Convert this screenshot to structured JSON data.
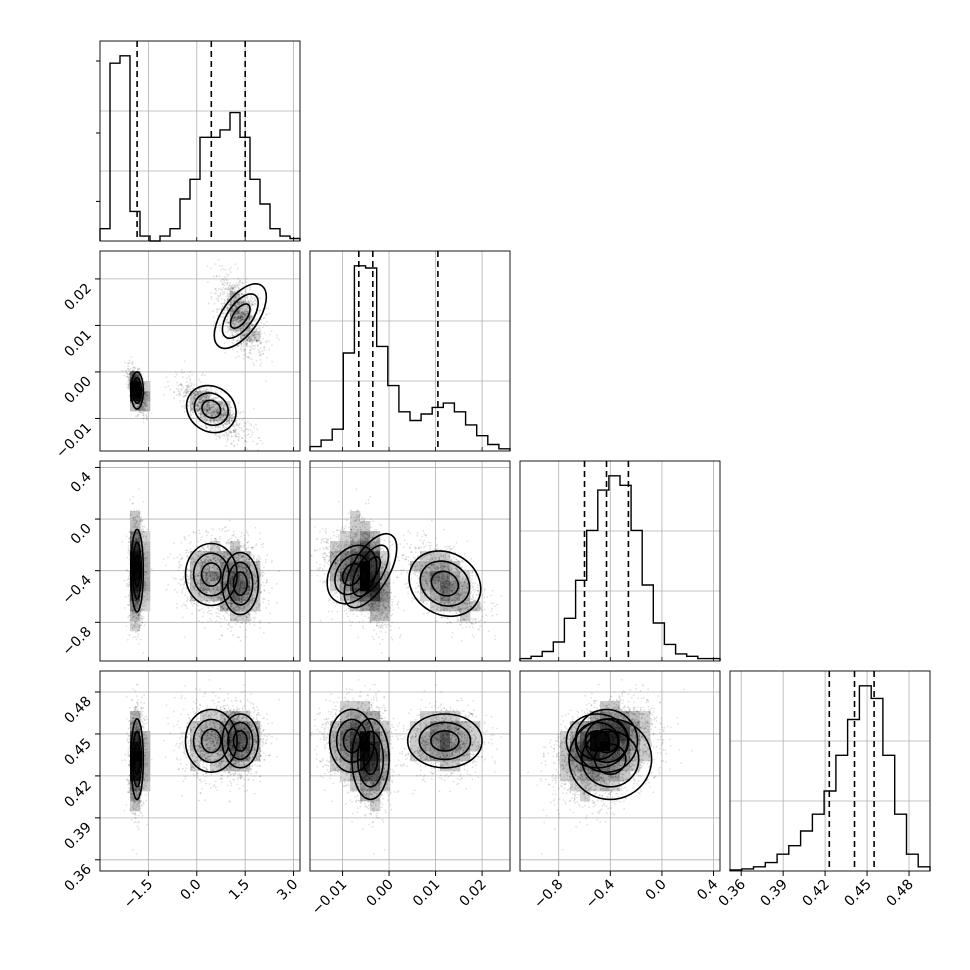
{
  "chart_data": {
    "type": "corner",
    "grid": true,
    "colors": {
      "line": "#000000",
      "grid": "#b0b0b0",
      "frame": "#000000",
      "density_max": "#000000",
      "density_min": "#f5f5f5"
    },
    "parameters": [
      {
        "range": [
          -3.0,
          3.2
        ],
        "ticks": [
          -1.5,
          0.0,
          1.5,
          3.0
        ],
        "tick_labels": [
          "−1.5",
          "0.0",
          "1.5",
          "3.0"
        ],
        "quantiles": [
          -1.85,
          0.45,
          1.5
        ],
        "hist": [
          0.05,
          0.72,
          0.75,
          0.12,
          0.02,
          0.0,
          0.02,
          0.05,
          0.17,
          0.25,
          0.42,
          0.42,
          0.45,
          0.52,
          0.42,
          0.25,
          0.15,
          0.05,
          0.02,
          0.01
        ],
        "components": [
          {
            "cx": -1.85,
            "sx": 0.15,
            "w": 0.38
          },
          {
            "cx": 0.45,
            "sx": 0.45,
            "w": 0.3
          },
          {
            "cx": 1.3,
            "sx": 0.42,
            "w": 0.32
          }
        ]
      },
      {
        "range": [
          -0.017,
          0.026
        ],
        "ticks": [
          -0.01,
          0.0,
          0.01,
          0.02
        ],
        "tick_labels": [
          "−0.01",
          "0.00",
          "0.01",
          "0.02"
        ],
        "quantiles": [
          -0.0065,
          -0.0035,
          0.0105
        ],
        "hist": [
          0.02,
          0.05,
          0.1,
          0.45,
          0.85,
          0.84,
          0.48,
          0.3,
          0.18,
          0.14,
          0.17,
          0.2,
          0.22,
          0.18,
          0.12,
          0.07,
          0.03,
          0.01
        ]
      },
      {
        "range": [
          -1.1,
          0.45
        ],
        "ticks": [
          -0.8,
          -0.4,
          0.0,
          0.4
        ],
        "tick_labels": [
          "−0.8",
          "−0.4",
          "0.0",
          "0.4"
        ],
        "quantiles": [
          -0.6,
          -0.43,
          -0.26
        ],
        "hist": [
          0.01,
          0.02,
          0.04,
          0.08,
          0.18,
          0.34,
          0.55,
          0.72,
          0.78,
          0.74,
          0.55,
          0.32,
          0.16,
          0.07,
          0.03,
          0.02,
          0.01,
          0.01
        ]
      },
      {
        "range": [
          0.352,
          0.495
        ],
        "ticks": [
          0.36,
          0.39,
          0.42,
          0.45,
          0.48
        ],
        "tick_labels": [
          "0.36",
          "0.39",
          "0.42",
          "0.45",
          "0.48"
        ],
        "quantiles": [
          0.423,
          0.441,
          0.455
        ],
        "hist": [
          0.005,
          0.01,
          0.02,
          0.04,
          0.08,
          0.12,
          0.19,
          0.27,
          0.38,
          0.55,
          0.72,
          0.88,
          0.82,
          0.55,
          0.27,
          0.08,
          0.02
        ]
      }
    ],
    "clusters": [
      {
        "p": [
          -1.85,
          -0.004,
          -0.4,
          0.432
        ],
        "s": [
          0.12,
          0.0025,
          0.2,
          0.018
        ],
        "w": 0.38
      },
      {
        "p": [
          0.45,
          -0.008,
          -0.43,
          0.445
        ],
        "s": [
          0.5,
          0.003,
          0.15,
          0.014
        ],
        "w": 0.3
      },
      {
        "p": [
          1.35,
          0.012,
          -0.5,
          0.445
        ],
        "s": [
          0.35,
          0.005,
          0.15,
          0.012
        ],
        "w": 0.32
      }
    ],
    "y_tick_labels": {
      "p1": [
        "−0.01",
        "0.00",
        "0.01",
        "0.02"
      ],
      "p2": [
        "−0.8",
        "−0.4",
        "0.0",
        "0.4"
      ],
      "p3": [
        "0.36",
        "0.39",
        "0.42",
        "0.45",
        "0.48"
      ]
    }
  }
}
